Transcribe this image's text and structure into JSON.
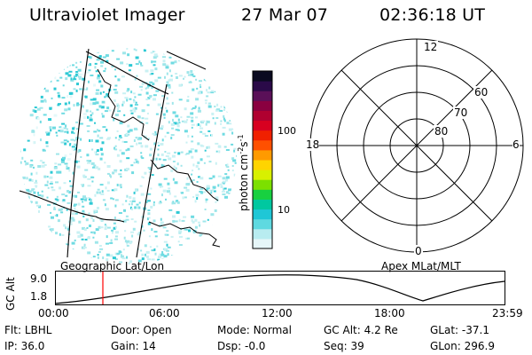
{
  "header": {
    "instrument": "Ultraviolet Imager",
    "date": "27 Mar 07",
    "time": "02:36:18 UT"
  },
  "left_panel": {
    "caption": "Geographic Lat/Lon"
  },
  "right_panel": {
    "caption": "Apex MLat/MLT",
    "mlt_labels": {
      "top": "12",
      "left": "18",
      "right": "6",
      "bottom": "0"
    },
    "lat_labels": [
      "60",
      "70",
      "80"
    ]
  },
  "colorbar": {
    "unit_label": "photon cm",
    "unit_exp1": "-2",
    "unit_s": "s",
    "unit_exp2": "-1",
    "tick_labels": [
      "100",
      "10"
    ],
    "colors": [
      "#e6f6f8",
      "#b8ecf0",
      "#5fd9e0",
      "#1fc7d6",
      "#00c8a0",
      "#18d040",
      "#7ce000",
      "#d8f000",
      "#ffd400",
      "#ff9a00",
      "#ff5000",
      "#f02000",
      "#d80020",
      "#b00030",
      "#8a0040",
      "#5a1058",
      "#2a0a48",
      "#0a0a20"
    ]
  },
  "timeline": {
    "y_axis_title": "GC Alt",
    "y_ticks": [
      "9.0",
      "1.8"
    ],
    "x_ticks": [
      "00:00",
      "06:00",
      "12:00",
      "18:00",
      "23:59"
    ],
    "cursor_time": "02:36"
  },
  "status": {
    "row1": [
      {
        "label": "Flt:",
        "value": "LBHL"
      },
      {
        "label": "Door:",
        "value": "Open"
      },
      {
        "label": "Mode:",
        "value": "Normal"
      },
      {
        "label": "GC Alt:",
        "value": "4.2 Re"
      },
      {
        "label": "GLat:",
        "value": "-37.1"
      }
    ],
    "row2": [
      {
        "label": "IP:",
        "value": "36.0"
      },
      {
        "label": "Gain:",
        "value": "14"
      },
      {
        "label": "Dsp:",
        "value": "-0.0"
      },
      {
        "label": "Seq:",
        "value": "39"
      },
      {
        "label": "GLon:",
        "value": "296.9"
      }
    ]
  },
  "colors": {
    "foreground": "#000000",
    "cursor": "#ff0000",
    "speckle": "#5ed8e0"
  }
}
